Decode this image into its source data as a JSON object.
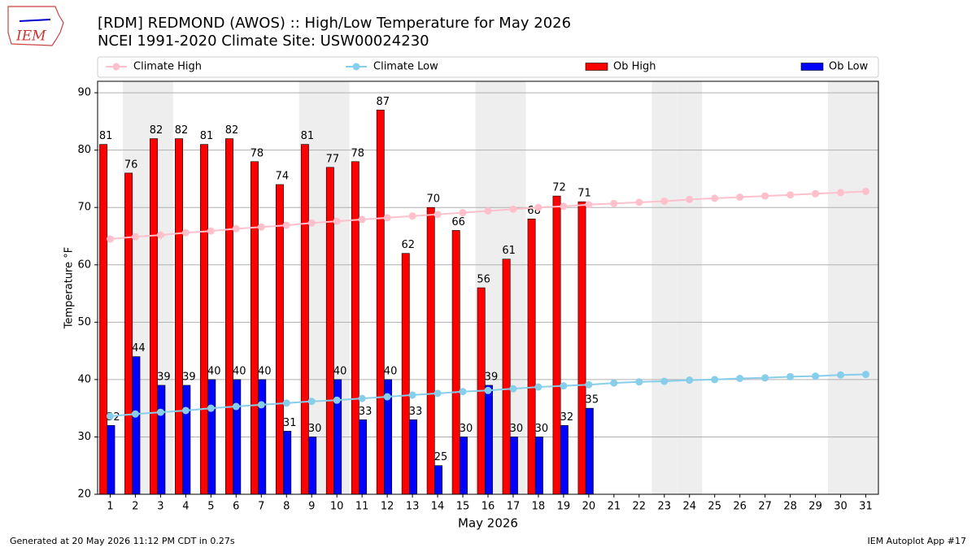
{
  "chart_data": {
    "type": "bar_line",
    "title": "[RDM] REDMOND (AWOS) :: High/Low Temperature for May 2026",
    "subtitle": "NCEI 1991-2020 Climate Site: USW00024230",
    "ylabel": "Temperature °F",
    "xlabel": "May 2026",
    "logo": "IEM",
    "footer_left": "Generated at 20 May 2026 11:12 PM CDT in 0.27s",
    "footer_right": "IEM Autoplot App #17",
    "categories": [
      "1",
      "2",
      "3",
      "4",
      "5",
      "6",
      "7",
      "8",
      "9",
      "10",
      "11",
      "12",
      "13",
      "14",
      "15",
      "16",
      "17",
      "18",
      "19",
      "20",
      "21",
      "22",
      "23",
      "24",
      "25",
      "26",
      "27",
      "28",
      "29",
      "30",
      "31"
    ],
    "shaded_categories": [
      "2",
      "3",
      "9",
      "10",
      "16",
      "17",
      "23",
      "24",
      "30",
      "31"
    ],
    "shade_color": "#eeeeee",
    "ylim": [
      20,
      92
    ],
    "yticks": [
      20,
      30,
      40,
      50,
      60,
      70,
      80,
      90
    ],
    "grid": true,
    "series": [
      {
        "name": "Climate High",
        "kind": "line",
        "color": "#ffc0cb",
        "values": [
          64.5,
          64.9,
          65.2,
          65.6,
          65.9,
          66.3,
          66.6,
          66.9,
          67.3,
          67.6,
          67.9,
          68.2,
          68.5,
          68.8,
          69.1,
          69.4,
          69.7,
          70.0,
          70.2,
          70.5,
          70.7,
          70.9,
          71.1,
          71.4,
          71.6,
          71.8,
          72.0,
          72.2,
          72.4,
          72.6,
          72.8
        ]
      },
      {
        "name": "Climate Low",
        "kind": "line",
        "color": "#87ceeb",
        "values": [
          33.6,
          34.0,
          34.3,
          34.6,
          35.0,
          35.3,
          35.6,
          35.9,
          36.2,
          36.4,
          36.7,
          37.0,
          37.3,
          37.6,
          37.9,
          38.1,
          38.4,
          38.7,
          38.9,
          39.1,
          39.4,
          39.6,
          39.7,
          39.9,
          40.0,
          40.2,
          40.3,
          40.5,
          40.6,
          40.8,
          40.9
        ]
      },
      {
        "name": "Ob High",
        "kind": "bar",
        "color": "#ff0000",
        "values": [
          81,
          76,
          82,
          82,
          81,
          82,
          78,
          74,
          81,
          77,
          78,
          87,
          62,
          70,
          66,
          56,
          61,
          68,
          72,
          71,
          null,
          null,
          null,
          null,
          null,
          null,
          null,
          null,
          null,
          null,
          null
        ]
      },
      {
        "name": "Ob Low",
        "kind": "bar",
        "color": "#0000ff",
        "values": [
          32,
          44,
          39,
          39,
          40,
          40,
          40,
          31,
          30,
          40,
          33,
          40,
          33,
          25,
          30,
          39,
          30,
          30,
          32,
          35,
          null,
          null,
          null,
          null,
          null,
          null,
          null,
          null,
          null,
          null,
          null
        ]
      }
    ]
  }
}
